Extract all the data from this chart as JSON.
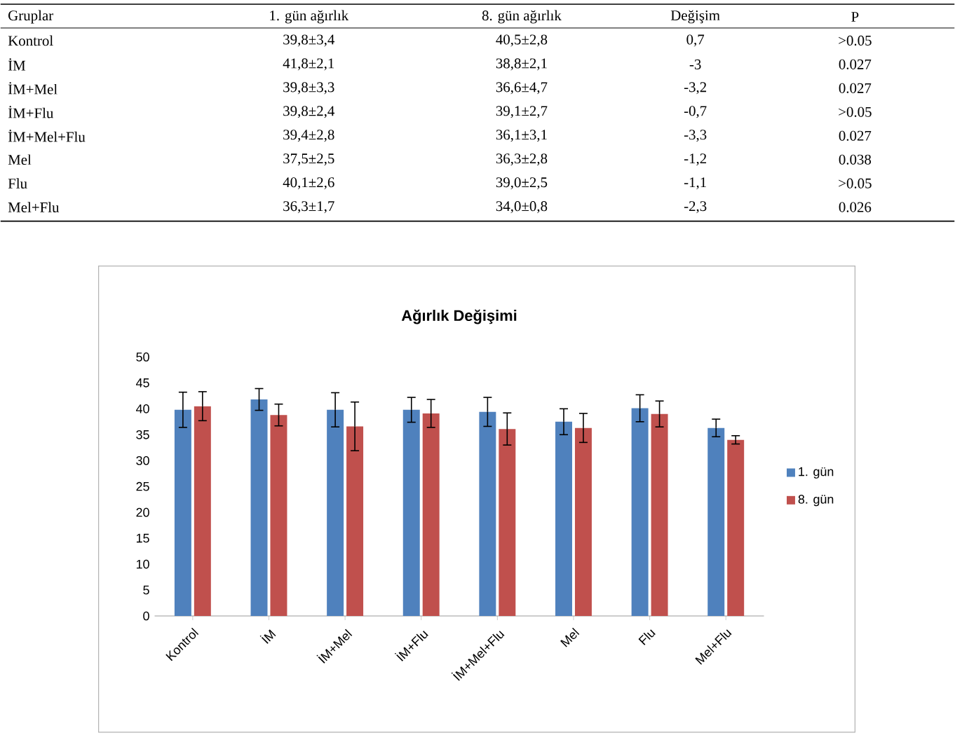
{
  "chart_data": {
    "type": "bar",
    "title": "Ağırlık Değişimi",
    "categories": [
      "Kontrol",
      "İM",
      "İM+Mel",
      "İM+Flu",
      "İM+Mel+Flu",
      "Mel",
      "Flu",
      "Mel+Flu"
    ],
    "series": [
      {
        "name": "1. gün",
        "color": "#4f81bd",
        "values": [
          39.8,
          41.8,
          39.8,
          39.8,
          39.4,
          37.5,
          40.1,
          36.3
        ],
        "errors": [
          3.4,
          2.1,
          3.3,
          2.4,
          2.8,
          2.5,
          2.6,
          1.7
        ]
      },
      {
        "name": "8. gün",
        "color": "#c0504d",
        "values": [
          40.5,
          38.8,
          36.6,
          39.1,
          36.1,
          36.3,
          39.0,
          34.0
        ],
        "errors": [
          2.8,
          2.1,
          4.7,
          2.7,
          3.1,
          2.8,
          2.5,
          0.8
        ]
      }
    ],
    "ylim": [
      0,
      50
    ],
    "yticks": [
      0,
      5,
      10,
      15,
      20,
      25,
      30,
      35,
      40,
      45,
      50
    ],
    "legend": "right",
    "annotations": [
      "Gruplar",
      "1. gün ağırlık",
      "8. gün ağırlık",
      "Değişim",
      "P",
      "Kontrol",
      "39,8±3,4",
      "40,5±2,8",
      "0,7",
      ">0.05",
      "İM",
      "41,8±2,1",
      "38,8±2,1",
      "-3",
      "0.027",
      "İM+Mel",
      "39,8±3,3",
      "36,6±4,7",
      "-3,2",
      "0.027",
      "İM+Flu",
      "39,8±2,4",
      "39,1±2,7",
      "-0,7",
      ">0.05",
      "İM+Mel+Flu",
      "39,4±2,8",
      "36,1±3,1",
      "-3,3",
      "0.027",
      "Mel",
      "37,5±2,5",
      "36,3±2,8",
      "-1,2",
      "0.038",
      "Flu",
      "40,1±2,6",
      "39,0±2,5",
      "-1,1",
      ">0.05",
      "Mel+Flu",
      "36,3±1,7",
      "34,0±0,8",
      "-2,3",
      "0.026"
    ]
  }
}
